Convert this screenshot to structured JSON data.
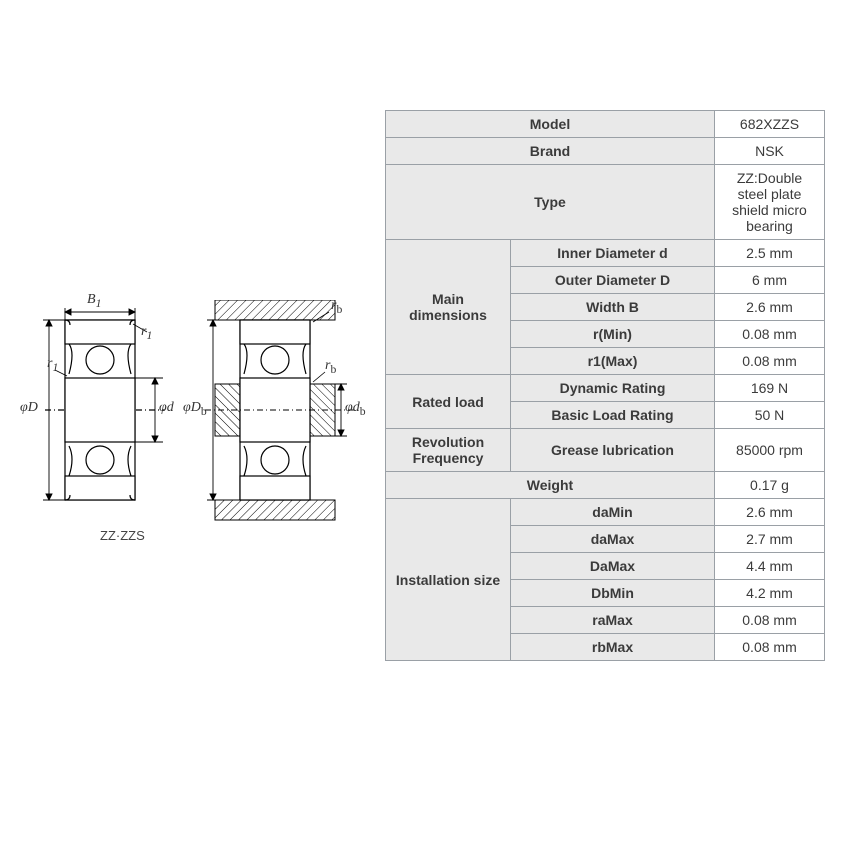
{
  "diagram": {
    "caption": "ZZ·ZZS",
    "labels": {
      "B1": "B₁",
      "r1_top": "r₁",
      "r1_left": "r₁",
      "phiD": "φD",
      "phid": "φd",
      "phiDb": "φD",
      "phiDb_sub": "b",
      "phidb": "φd",
      "phidb_sub": "b",
      "rb_top": "r",
      "rb_top_sub": "b",
      "rb_mid": "r",
      "rb_mid_sub": "b"
    }
  },
  "table": {
    "header_bg": "#e9e9e9",
    "value_bg": "#ffffff",
    "border_color": "#9aa0a6",
    "text_color": "#3b3b3b",
    "font_size": 14,
    "rows": [
      {
        "group": null,
        "param": "Model",
        "value": "682XZZS",
        "span": 2
      },
      {
        "group": null,
        "param": "Brand",
        "value": "NSK",
        "span": 2
      },
      {
        "group": null,
        "param": "Type",
        "value": "ZZ:Double steel plate shield micro bearing",
        "span": 2
      },
      {
        "group": "Main dimensions",
        "group_rows": 5,
        "param": "Inner Diameter d",
        "value": "2.5 mm"
      },
      {
        "param": "Outer Diameter D",
        "value": "6 mm"
      },
      {
        "param": "Width B",
        "value": "2.6 mm"
      },
      {
        "param": "r(Min)",
        "value": "0.08 mm"
      },
      {
        "param": "r1(Max)",
        "value": "0.08 mm"
      },
      {
        "group": "Rated load",
        "group_rows": 2,
        "param": "Dynamic Rating",
        "value": "169 N"
      },
      {
        "param": "Basic Load Rating",
        "value": "50 N"
      },
      {
        "group": "Revolution Frequency",
        "group_rows": 1,
        "param": "Grease lubrication",
        "value": "85000 rpm"
      },
      {
        "group": null,
        "param": "Weight",
        "value": "0.17 g",
        "span": 2
      },
      {
        "group": "Installation size",
        "group_rows": 6,
        "param": "daMin",
        "value": "2.6 mm"
      },
      {
        "param": "daMax",
        "value": "2.7 mm"
      },
      {
        "param": "DaMax",
        "value": "4.4 mm"
      },
      {
        "param": "DbMin",
        "value": "4.2 mm"
      },
      {
        "param": "raMax",
        "value": "0.08 mm"
      },
      {
        "param": "rbMax",
        "value": "0.08 mm"
      }
    ]
  }
}
